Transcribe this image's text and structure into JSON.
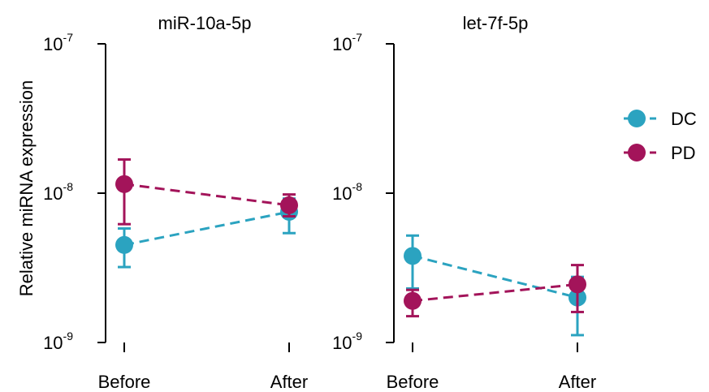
{
  "colors": {
    "DC": "#2ba3c0",
    "PD": "#a3145a"
  },
  "y_axis_label": "Relative miRNA expression",
  "legend": [
    {
      "key": "DC",
      "label": "DC"
    },
    {
      "key": "PD",
      "label": "PD"
    }
  ],
  "chart_data": [
    {
      "type": "line",
      "title": "miR-10a-5p",
      "categories": [
        "Before",
        "After"
      ],
      "ylabel": "Relative miRNA expression",
      "yscale": "log",
      "ylim": [
        1e-09,
        1e-07
      ],
      "yticks": [
        {
          "base": "10",
          "exp": "-9"
        },
        {
          "base": "10",
          "exp": "-8"
        },
        {
          "base": "10",
          "exp": "-7"
        }
      ],
      "series": [
        {
          "name": "DC",
          "values": [
            4.5e-09,
            7.5e-09
          ],
          "err_low": [
            3.2e-09,
            5.4e-09
          ],
          "err_high": [
            5.8e-09,
            9.2e-09
          ]
        },
        {
          "name": "PD",
          "values": [
            1.15e-08,
            8.3e-09
          ],
          "err_low": [
            6.2e-09,
            7e-09
          ],
          "err_high": [
            1.68e-08,
            9.8e-09
          ]
        }
      ]
    },
    {
      "type": "line",
      "title": "let-7f-5p",
      "categories": [
        "Before",
        "After"
      ],
      "ylabel": "",
      "yscale": "log",
      "ylim": [
        1e-09,
        1e-07
      ],
      "yticks": [
        {
          "base": "10",
          "exp": "-9"
        },
        {
          "base": "10",
          "exp": "-8"
        },
        {
          "base": "10",
          "exp": "-7"
        }
      ],
      "series": [
        {
          "name": "DC",
          "values": [
            3.8e-09,
            2e-09
          ],
          "err_low": [
            2.3e-09,
            1.12e-09
          ],
          "err_high": [
            5.2e-09,
            2.75e-09
          ]
        },
        {
          "name": "PD",
          "values": [
            1.9e-09,
            2.45e-09
          ],
          "err_low": [
            1.5e-09,
            1.6e-09
          ],
          "err_high": [
            2.25e-09,
            3.3e-09
          ]
        }
      ]
    }
  ]
}
